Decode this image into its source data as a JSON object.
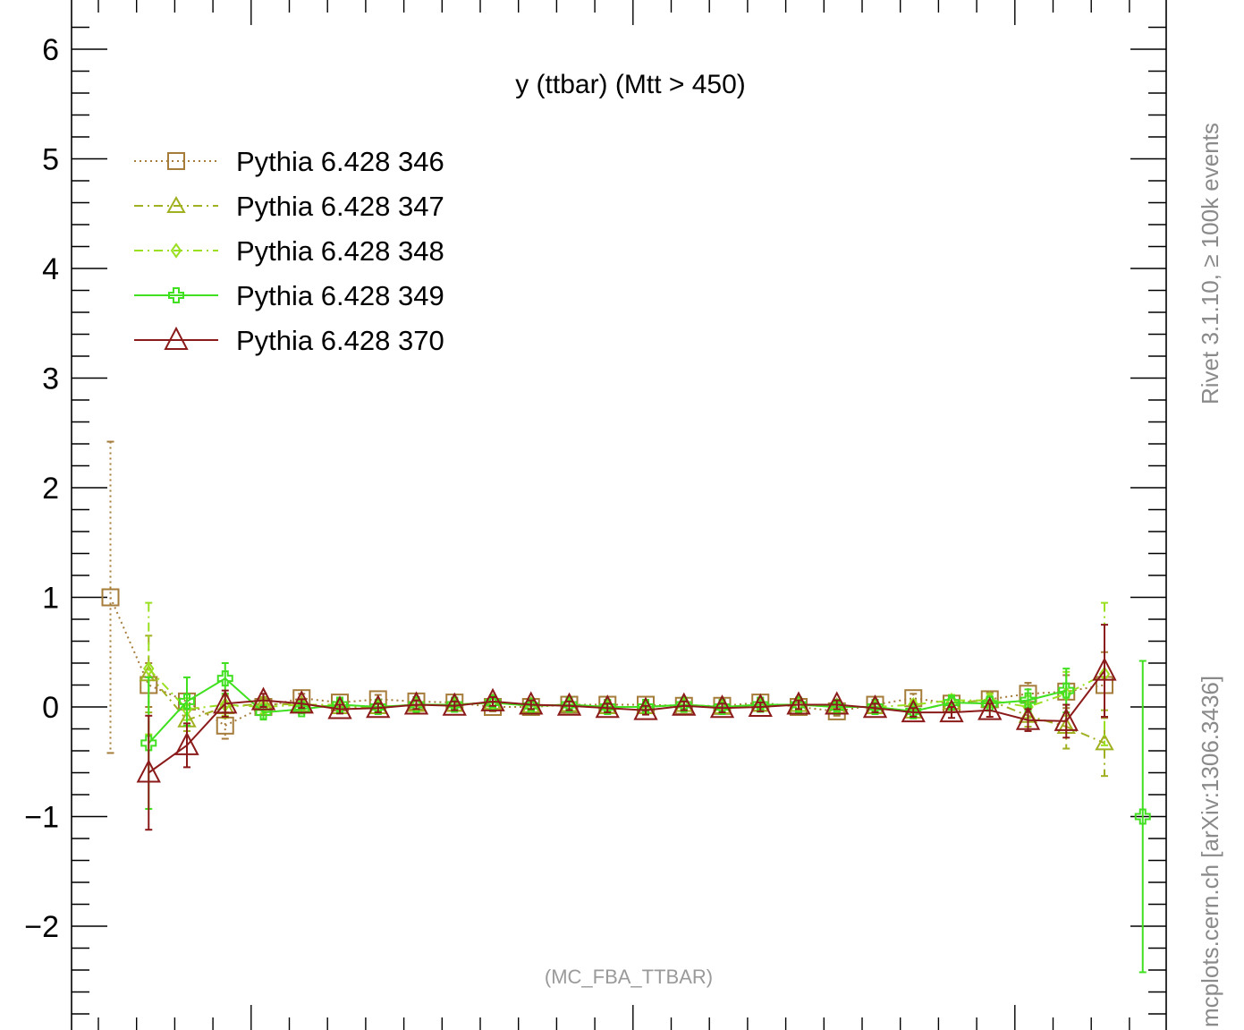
{
  "chart_data": {
    "type": "line",
    "title": "y (ttbar) (Mtt > 450)",
    "watermark": "(MC_FBA_TTBAR)",
    "side_label_top": "Rivet 3.1.10, ≥ 100k events",
    "side_label_bottom": "mcplots.cern.ch [arXiv:1306.3436]",
    "xlabel": "",
    "ylabel": "",
    "ylim": [
      -3,
      6.3
    ],
    "xlim": [
      0,
      28
    ],
    "y_ticks": [
      -2,
      -1,
      0,
      1,
      2,
      3,
      4,
      5,
      6
    ],
    "y_tick_labels": [
      "−2",
      "−1",
      "0",
      "1",
      "2",
      "3",
      "4",
      "5",
      "6"
    ],
    "grid": false,
    "legend_position": "top-left",
    "series": [
      {
        "name": "Pythia 6.428 346",
        "color": "#a67c3a",
        "marker": "square",
        "dash": "dot",
        "x": [
          1,
          2,
          3,
          4,
          5,
          6,
          7,
          8,
          9,
          10,
          11,
          12,
          13,
          14,
          15,
          16,
          17,
          18,
          19,
          20,
          21,
          22,
          23,
          24,
          25,
          26,
          27,
          28
        ],
        "y": [
          1.0,
          0.2,
          0.05,
          -0.17,
          0.0,
          0.08,
          0.04,
          0.07,
          0.05,
          0.04,
          0.0,
          0.0,
          0.02,
          0.02,
          0.02,
          0.01,
          0.01,
          0.04,
          0.0,
          -0.04,
          0.02,
          0.08,
          0.03,
          0.07,
          0.12,
          0.14,
          0.2,
          null
        ],
        "err": [
          1.42,
          0.2,
          0.07,
          0.12,
          0.06,
          0.04,
          0.04,
          0.04,
          0.04,
          0.04,
          0.04,
          0.04,
          0.04,
          0.04,
          0.04,
          0.04,
          0.04,
          0.04,
          0.04,
          0.04,
          0.04,
          0.04,
          0.05,
          0.06,
          0.1,
          0.15,
          0.3,
          null
        ]
      },
      {
        "name": "Pythia 6.428 347",
        "color": "#a0b020",
        "marker": "triangle-small",
        "dash": "dashdot",
        "x": [
          1,
          2,
          3,
          4,
          5,
          6,
          7,
          8,
          9,
          10,
          11,
          12,
          13,
          14,
          15,
          16,
          17,
          18,
          19,
          20,
          21,
          22,
          23,
          24,
          25,
          26,
          27,
          28
        ],
        "y": [
          null,
          0.3,
          -0.12,
          0.0,
          0.03,
          0.02,
          0.0,
          0.0,
          0.02,
          0.02,
          0.04,
          0.01,
          0.02,
          0.0,
          0.0,
          0.02,
          0.0,
          0.02,
          0.02,
          0.0,
          0.0,
          -0.04,
          0.04,
          0.06,
          -0.08,
          -0.18,
          -0.33,
          null
        ],
        "err": [
          null,
          0.35,
          0.1,
          0.1,
          0.06,
          0.04,
          0.04,
          0.04,
          0.04,
          0.04,
          0.04,
          0.04,
          0.04,
          0.04,
          0.04,
          0.04,
          0.04,
          0.04,
          0.04,
          0.04,
          0.04,
          0.04,
          0.05,
          0.06,
          0.1,
          0.2,
          0.3,
          null
        ]
      },
      {
        "name": "Pythia 6.428 348",
        "color": "#9ae020",
        "marker": "diamond",
        "dash": "dashdot",
        "x": [
          1,
          2,
          3,
          4,
          5,
          6,
          7,
          8,
          9,
          10,
          11,
          12,
          13,
          14,
          15,
          16,
          17,
          18,
          19,
          20,
          21,
          22,
          23,
          24,
          25,
          26,
          27,
          28
        ],
        "y": [
          null,
          0.35,
          -0.02,
          0.02,
          0.0,
          0.02,
          0.02,
          0.0,
          0.02,
          0.02,
          0.04,
          0.01,
          0.02,
          0.0,
          0.0,
          0.02,
          0.0,
          0.02,
          0.02,
          0.0,
          0.0,
          0.02,
          0.06,
          0.06,
          0.0,
          0.12,
          0.3,
          null
        ],
        "err": [
          null,
          0.6,
          0.1,
          0.1,
          0.06,
          0.04,
          0.04,
          0.04,
          0.04,
          0.04,
          0.04,
          0.04,
          0.04,
          0.04,
          0.04,
          0.04,
          0.04,
          0.04,
          0.04,
          0.04,
          0.04,
          0.04,
          0.05,
          0.06,
          0.1,
          0.2,
          0.65,
          null
        ]
      },
      {
        "name": "Pythia 6.428 349",
        "color": "#40e020",
        "marker": "cross",
        "dash": "solid",
        "x": [
          1,
          2,
          3,
          4,
          5,
          6,
          7,
          8,
          9,
          10,
          11,
          12,
          13,
          14,
          15,
          16,
          17,
          18,
          19,
          20,
          21,
          22,
          23,
          24,
          25,
          26,
          27,
          28
        ],
        "y": [
          null,
          -0.33,
          0.05,
          0.26,
          -0.05,
          -0.02,
          0.02,
          0.0,
          0.02,
          0.02,
          0.04,
          0.01,
          0.02,
          0.0,
          0.0,
          0.02,
          0.0,
          0.02,
          0.02,
          0.0,
          0.0,
          -0.04,
          0.04,
          0.03,
          0.06,
          0.15,
          null,
          -1.0
        ],
        "err": [
          null,
          0.6,
          0.22,
          0.14,
          0.06,
          0.04,
          0.04,
          0.04,
          0.04,
          0.04,
          0.04,
          0.04,
          0.04,
          0.04,
          0.04,
          0.04,
          0.04,
          0.04,
          0.04,
          0.04,
          0.04,
          0.04,
          0.05,
          0.06,
          0.1,
          0.2,
          null,
          1.42
        ]
      },
      {
        "name": "Pythia 6.428 370",
        "color": "#8b1a1a",
        "marker": "triangle",
        "dash": "solid",
        "x": [
          1,
          2,
          3,
          4,
          5,
          6,
          7,
          8,
          9,
          10,
          11,
          12,
          13,
          14,
          15,
          16,
          17,
          18,
          19,
          20,
          21,
          22,
          23,
          24,
          25,
          26,
          27,
          28
        ],
        "y": [
          null,
          -0.6,
          -0.35,
          0.03,
          0.06,
          0.03,
          -0.02,
          -0.01,
          0.02,
          0.01,
          0.05,
          0.02,
          0.01,
          -0.01,
          -0.03,
          0.01,
          -0.01,
          0.0,
          0.02,
          0.02,
          -0.01,
          -0.05,
          -0.05,
          -0.03,
          -0.12,
          -0.13,
          0.33,
          null
        ],
        "err": [
          null,
          0.52,
          0.2,
          0.12,
          0.06,
          0.04,
          0.04,
          0.04,
          0.04,
          0.04,
          0.04,
          0.04,
          0.04,
          0.04,
          0.04,
          0.04,
          0.04,
          0.04,
          0.04,
          0.04,
          0.04,
          0.04,
          0.05,
          0.06,
          0.1,
          0.15,
          0.42,
          null
        ]
      }
    ]
  }
}
